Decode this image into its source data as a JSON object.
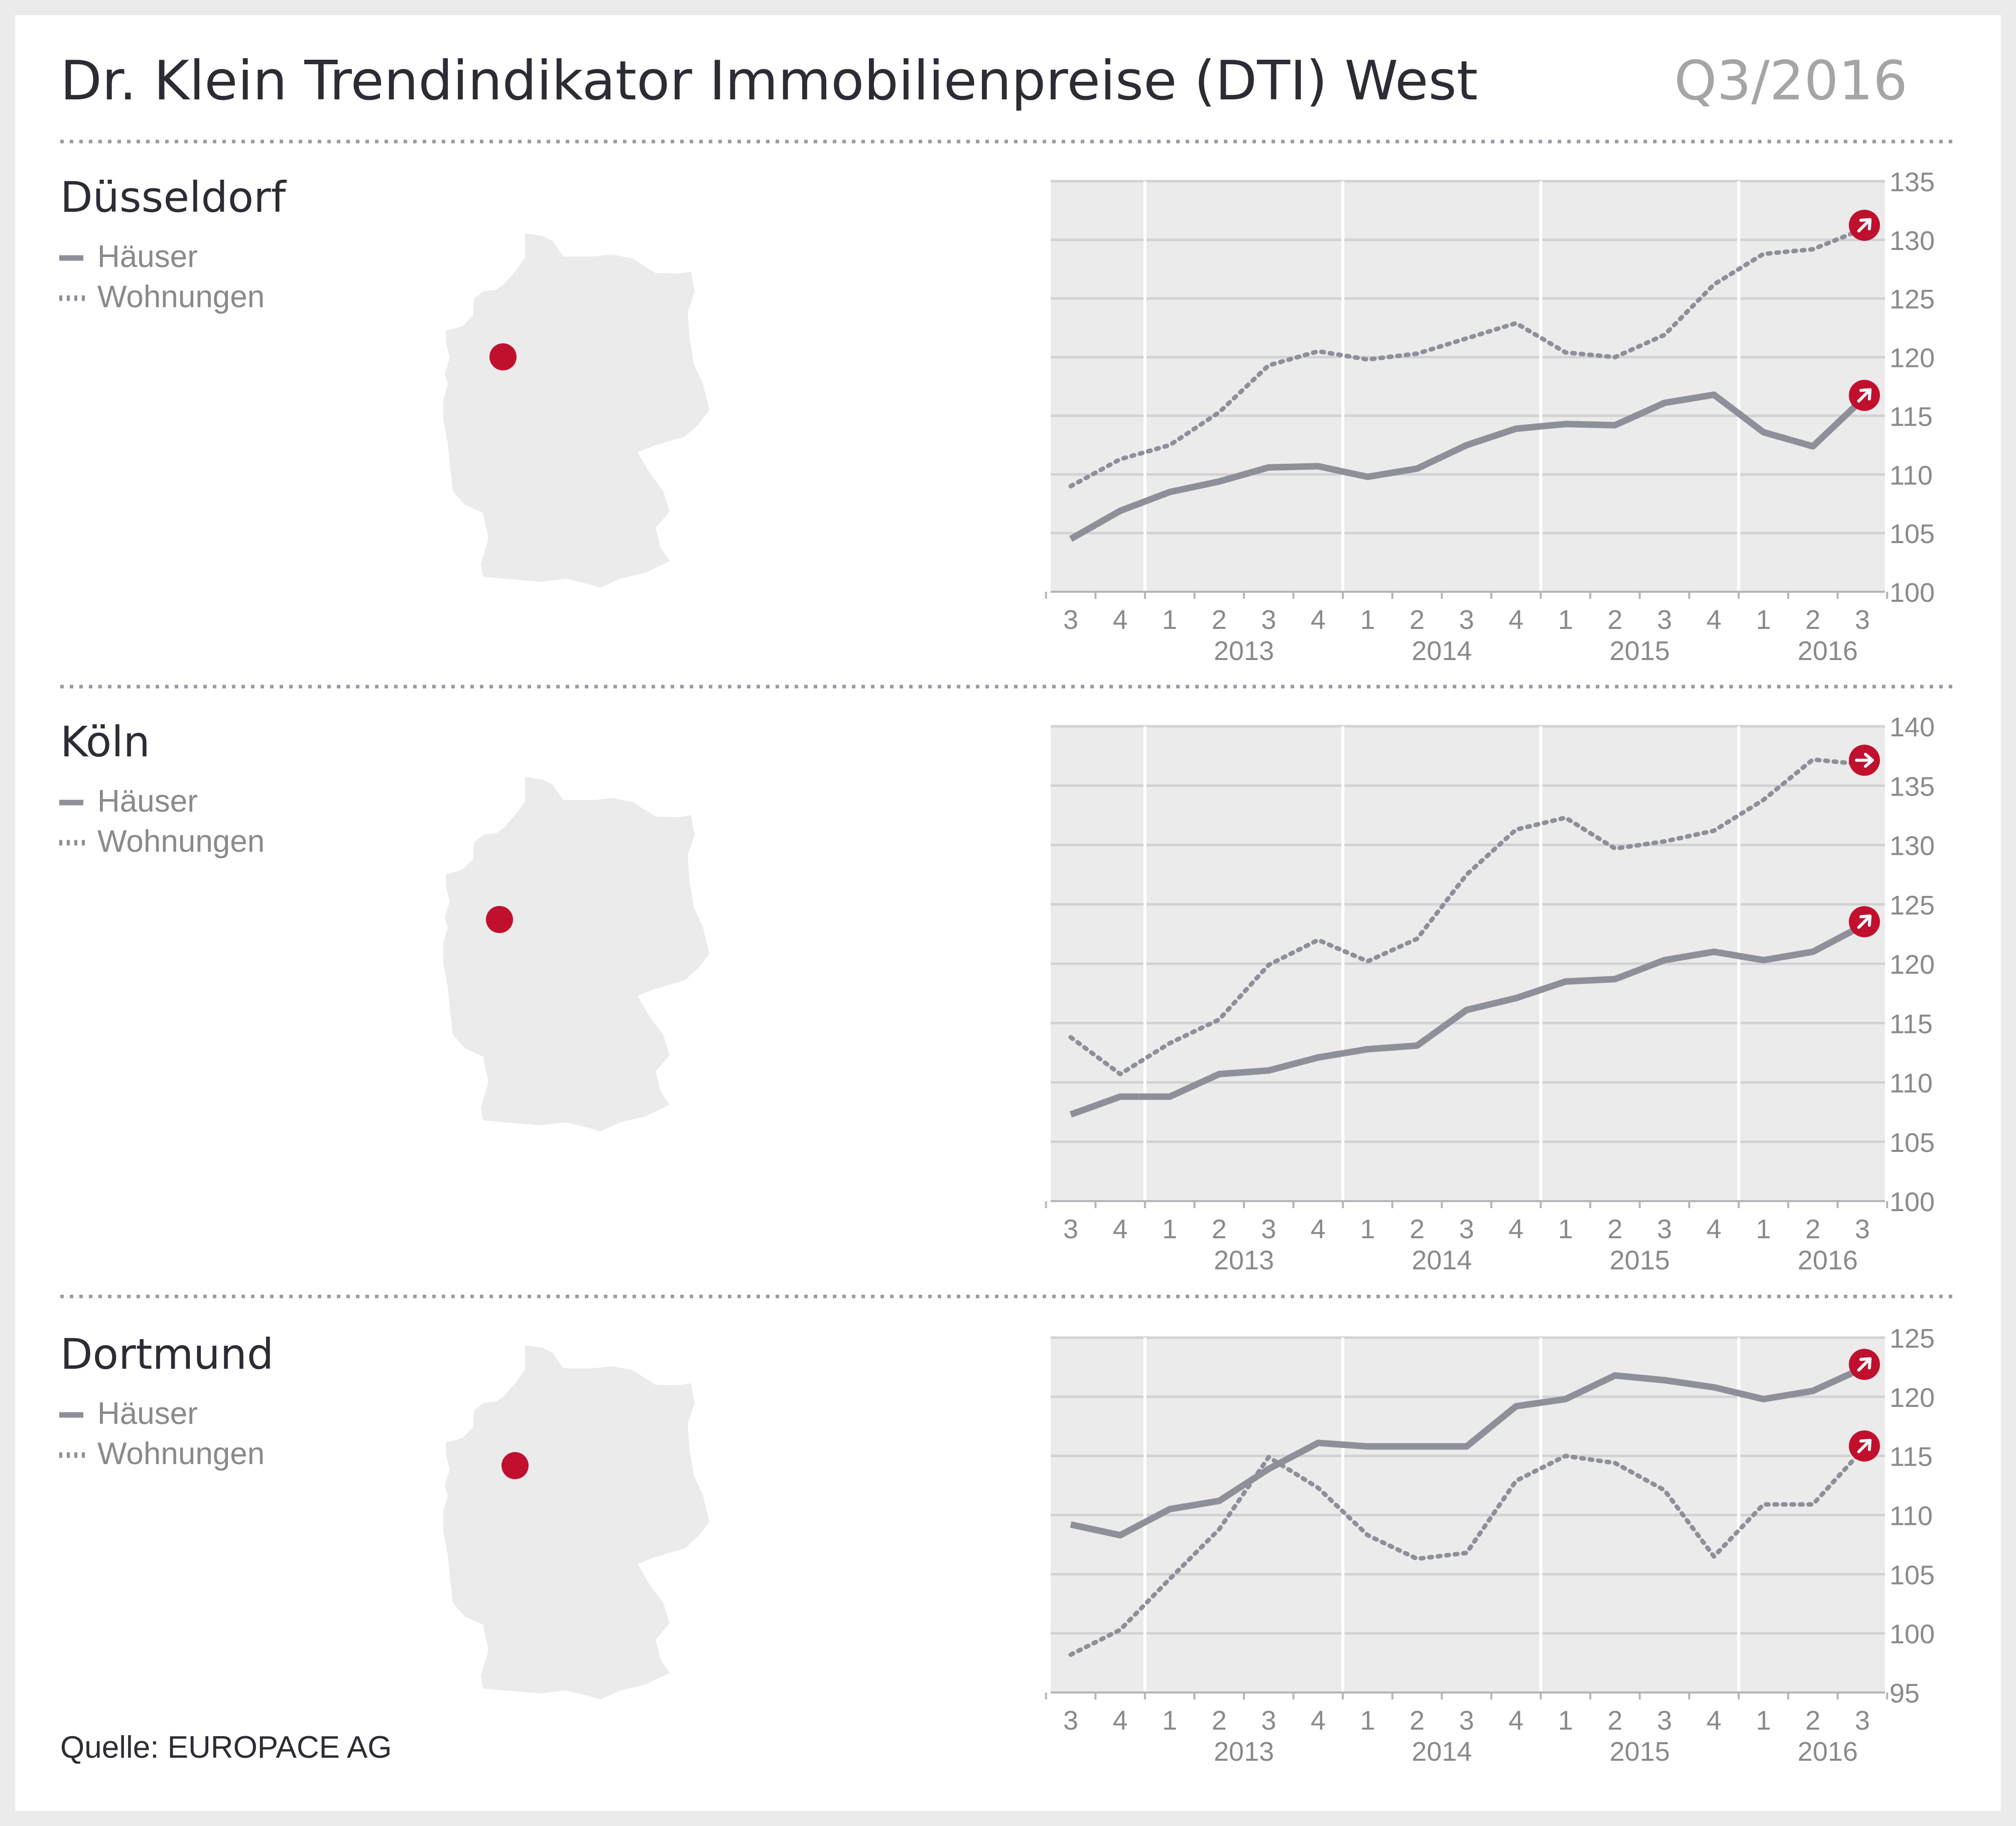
{
  "title": "Dr. Klein Trendindikator Immobilienpreise (DTI) West",
  "period": "Q3/2016",
  "source": "Quelle: EUROPACE AG",
  "colors": {
    "line": "#8e9099",
    "accent": "#c0102e",
    "panel": "#ebebeb",
    "page": "#ffffff",
    "grid": "#d6d6d8",
    "text": "#2c2c35",
    "muted": "#8a8a8a"
  },
  "icons": {
    "trend": "arrow-badge-icon",
    "marker": "location-dot-icon"
  },
  "chart_data": [
    {
      "type": "line",
      "city": "Düsseldorf",
      "legend": [
        "Häuser",
        "Wohnungen"
      ],
      "x_quarters": [
        "3",
        "4",
        "1",
        "2",
        "3",
        "4",
        "1",
        "2",
        "3",
        "4",
        "1",
        "2",
        "3",
        "4",
        "1",
        "2",
        "3"
      ],
      "x_years": [
        "2013",
        "2014",
        "2015",
        "2016"
      ],
      "ylim": [
        100,
        135
      ],
      "yticks": [
        100,
        105,
        110,
        115,
        120,
        125,
        130,
        135
      ],
      "series": [
        {
          "name": "Häuser",
          "style": "solid",
          "values": [
            104.5,
            106.9,
            108.5,
            109.4,
            110.6,
            110.7,
            109.8,
            110.5,
            112.5,
            113.9,
            114.3,
            114.2,
            116.1,
            116.8,
            113.6,
            112.4,
            116.4
          ]
        },
        {
          "name": "Wohnungen",
          "style": "dotted",
          "values": [
            109.0,
            111.3,
            112.5,
            115.3,
            119.3,
            120.5,
            119.8,
            120.3,
            121.6,
            122.9,
            120.4,
            120.0,
            121.9,
            126.2,
            128.8,
            129.2,
            130.9
          ]
        }
      ]
    },
    {
      "type": "line",
      "city": "Köln",
      "legend": [
        "Häuser",
        "Wohnungen"
      ],
      "x_quarters": [
        "3",
        "4",
        "1",
        "2",
        "3",
        "4",
        "1",
        "2",
        "3",
        "4",
        "1",
        "2",
        "3",
        "4",
        "1",
        "2",
        "3"
      ],
      "x_years": [
        "2013",
        "2014",
        "2015",
        "2016"
      ],
      "ylim": [
        100,
        140
      ],
      "yticks": [
        100,
        105,
        110,
        115,
        120,
        125,
        130,
        135,
        140
      ],
      "series": [
        {
          "name": "Häuser",
          "style": "solid",
          "values": [
            107.3,
            108.8,
            108.8,
            110.7,
            111.0,
            112.1,
            112.8,
            113.1,
            116.1,
            117.1,
            118.5,
            118.7,
            120.3,
            121.0,
            120.3,
            121.0,
            123.2
          ]
        },
        {
          "name": "Wohnungen",
          "style": "dotted",
          "values": [
            113.8,
            110.7,
            113.3,
            115.3,
            119.9,
            122.0,
            120.2,
            122.1,
            127.5,
            131.3,
            132.3,
            129.7,
            130.3,
            131.2,
            133.8,
            137.2,
            136.8
          ]
        }
      ]
    },
    {
      "type": "line",
      "city": "Dortmund",
      "legend": [
        "Häuser",
        "Wohnungen"
      ],
      "x_quarters": [
        "3",
        "4",
        "1",
        "2",
        "3",
        "4",
        "1",
        "2",
        "3",
        "4",
        "1",
        "2",
        "3",
        "4",
        "1",
        "2",
        "3"
      ],
      "x_years": [
        "2013",
        "2014",
        "2015",
        "2016"
      ],
      "ylim": [
        95,
        125
      ],
      "yticks": [
        95,
        100,
        105,
        110,
        115,
        120,
        125
      ],
      "series": [
        {
          "name": "Häuser",
          "style": "solid",
          "values": [
            109.2,
            108.3,
            110.5,
            111.2,
            113.9,
            116.1,
            115.8,
            115.8,
            115.8,
            119.2,
            119.8,
            121.8,
            121.4,
            120.8,
            119.8,
            120.5,
            122.4
          ]
        },
        {
          "name": "Wohnungen",
          "style": "dotted",
          "values": [
            98.2,
            100.3,
            104.6,
            108.8,
            114.9,
            112.3,
            108.3,
            106.3,
            106.8,
            112.9,
            115.0,
            114.4,
            112.1,
            106.5,
            110.9,
            110.9,
            115.5
          ]
        }
      ]
    }
  ]
}
